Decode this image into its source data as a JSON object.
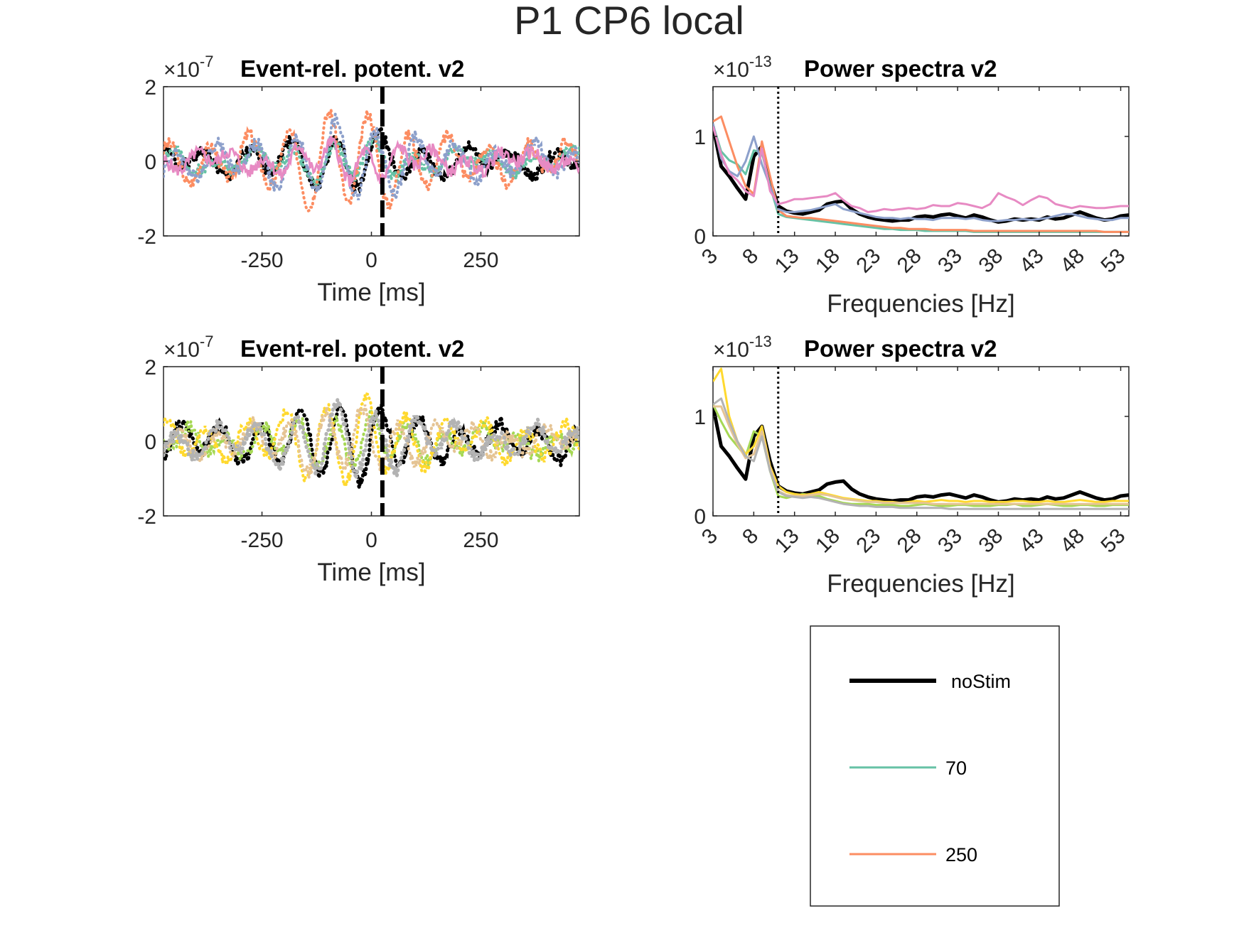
{
  "figure_title": "P1 CP6 local",
  "legend": [
    {
      "label": "noStim",
      "color": "#000000"
    },
    {
      "label": "70",
      "color": "#66c2a5"
    },
    {
      "label": "250",
      "color": "#fc8d62"
    }
  ],
  "chart_data": [
    {
      "type": "line",
      "title": "Event-rel. potent. v2",
      "xlabel": "Time [ms]",
      "ylabel": "",
      "y_multiplier": "×10^-7",
      "xlim": [
        -475,
        475
      ],
      "ylim": [
        -2,
        2
      ],
      "xticks": [
        "-250",
        "0",
        "250"
      ],
      "yticks": [
        "-2",
        "0",
        "2"
      ],
      "event_marker_x": 25,
      "series": [
        {
          "color": "#000000",
          "style": "dotted-thick",
          "amplitude": 0.7,
          "freq": 10,
          "phase": 0.4,
          "seed": 1
        },
        {
          "color": "#66c2a5",
          "style": "dotted",
          "amplitude": 0.5,
          "freq": 11,
          "phase": 1.2,
          "seed": 2
        },
        {
          "color": "#fc8d62",
          "style": "dotted",
          "amplitude": 1.3,
          "freq": 11,
          "phase": 2.0,
          "seed": 3
        },
        {
          "color": "#8da0cb",
          "style": "dotted",
          "amplitude": 1.0,
          "freq": 11,
          "phase": 0.9,
          "seed": 4
        },
        {
          "color": "#e78ac3",
          "style": "solid",
          "amplitude": 0.45,
          "freq": 13,
          "phase": 2.7,
          "seed": 5
        }
      ]
    },
    {
      "type": "line",
      "title": "Power spectra v2",
      "xlabel": "Frequencies [Hz]",
      "ylabel": "",
      "y_multiplier": "×10^-13",
      "xlim": [
        3,
        54
      ],
      "ylim": [
        0,
        1.5
      ],
      "xticks": [
        "3",
        "8",
        "13",
        "18",
        "23",
        "28",
        "33",
        "38",
        "43",
        "48",
        "53"
      ],
      "yticks": [
        "0",
        "1"
      ],
      "marker_x": 11,
      "x": [
        3,
        4,
        5,
        6,
        7,
        8,
        9,
        10,
        11,
        12,
        13,
        14,
        15,
        16,
        17,
        18,
        19,
        20,
        21,
        22,
        23,
        24,
        25,
        26,
        27,
        28,
        29,
        30,
        31,
        32,
        33,
        34,
        35,
        36,
        37,
        38,
        39,
        40,
        41,
        42,
        43,
        44,
        45,
        46,
        47,
        48,
        49,
        50,
        51,
        52,
        53,
        54
      ],
      "series": [
        {
          "color": "#000000",
          "width": 5,
          "values": [
            1.1,
            0.7,
            0.6,
            0.48,
            0.37,
            0.8,
            0.9,
            0.55,
            0.3,
            0.25,
            0.23,
            0.22,
            0.24,
            0.26,
            0.32,
            0.34,
            0.35,
            0.27,
            0.22,
            0.19,
            0.17,
            0.16,
            0.15,
            0.16,
            0.16,
            0.19,
            0.2,
            0.19,
            0.21,
            0.22,
            0.2,
            0.18,
            0.21,
            0.19,
            0.16,
            0.14,
            0.15,
            0.17,
            0.16,
            0.17,
            0.16,
            0.19,
            0.17,
            0.18,
            0.21,
            0.24,
            0.21,
            0.18,
            0.16,
            0.17,
            0.2,
            0.21
          ]
        },
        {
          "color": "#66c2a5",
          "width": 3,
          "values": [
            1.12,
            0.85,
            0.76,
            0.72,
            0.62,
            0.86,
            0.84,
            0.5,
            0.22,
            0.19,
            0.18,
            0.17,
            0.16,
            0.15,
            0.14,
            0.13,
            0.12,
            0.11,
            0.1,
            0.09,
            0.08,
            0.07,
            0.07,
            0.06,
            0.06,
            0.06,
            0.05,
            0.05,
            0.05,
            0.05,
            0.05,
            0.05,
            0.04,
            0.04,
            0.04,
            0.04,
            0.04,
            0.04,
            0.04,
            0.04,
            0.04,
            0.04,
            0.04,
            0.04,
            0.04,
            0.04,
            0.04,
            0.04,
            0.04,
            0.04,
            0.04,
            0.04
          ]
        },
        {
          "color": "#fc8d62",
          "width": 3,
          "values": [
            1.15,
            1.2,
            0.95,
            0.7,
            0.5,
            0.42,
            0.95,
            0.6,
            0.26,
            0.2,
            0.19,
            0.18,
            0.18,
            0.17,
            0.16,
            0.15,
            0.14,
            0.13,
            0.12,
            0.11,
            0.1,
            0.09,
            0.08,
            0.08,
            0.07,
            0.07,
            0.07,
            0.06,
            0.06,
            0.06,
            0.06,
            0.06,
            0.05,
            0.05,
            0.05,
            0.05,
            0.05,
            0.05,
            0.05,
            0.05,
            0.05,
            0.05,
            0.05,
            0.05,
            0.05,
            0.05,
            0.05,
            0.05,
            0.04,
            0.04,
            0.04,
            0.04
          ]
        },
        {
          "color": "#8da0cb",
          "width": 3,
          "values": [
            1.13,
            0.78,
            0.65,
            0.6,
            0.75,
            1.0,
            0.72,
            0.5,
            0.27,
            0.24,
            0.24,
            0.25,
            0.26,
            0.28,
            0.3,
            0.32,
            0.27,
            0.25,
            0.23,
            0.21,
            0.19,
            0.18,
            0.18,
            0.17,
            0.18,
            0.17,
            0.17,
            0.16,
            0.18,
            0.18,
            0.18,
            0.17,
            0.18,
            0.16,
            0.15,
            0.15,
            0.16,
            0.16,
            0.17,
            0.16,
            0.17,
            0.18,
            0.2,
            0.22,
            0.22,
            0.2,
            0.18,
            0.17,
            0.16,
            0.16,
            0.18,
            0.18
          ]
        },
        {
          "color": "#e78ac3",
          "width": 3,
          "values": [
            1.1,
            0.82,
            0.63,
            0.56,
            0.45,
            0.4,
            0.88,
            0.45,
            0.32,
            0.34,
            0.37,
            0.37,
            0.38,
            0.39,
            0.4,
            0.43,
            0.36,
            0.3,
            0.28,
            0.24,
            0.25,
            0.27,
            0.26,
            0.27,
            0.28,
            0.27,
            0.28,
            0.31,
            0.3,
            0.3,
            0.33,
            0.32,
            0.3,
            0.28,
            0.32,
            0.43,
            0.39,
            0.36,
            0.31,
            0.36,
            0.4,
            0.38,
            0.32,
            0.3,
            0.28,
            0.3,
            0.29,
            0.28,
            0.28,
            0.29,
            0.3,
            0.3
          ]
        }
      ]
    },
    {
      "type": "line",
      "title": "Event-rel. potent. v2",
      "xlabel": "Time [ms]",
      "ylabel": "",
      "y_multiplier": "×10^-7",
      "xlim": [
        -475,
        475
      ],
      "ylim": [
        -2,
        2
      ],
      "xticks": [
        "-250",
        "0",
        "250"
      ],
      "yticks": [
        "-2",
        "0",
        "2"
      ],
      "event_marker_x": 25,
      "series": [
        {
          "color": "#000000",
          "style": "dotted-thick",
          "amplitude": 1.0,
          "freq": 11,
          "phase": 0.2,
          "seed": 6
        },
        {
          "color": "#a6d854",
          "style": "dotted",
          "amplitude": 0.7,
          "freq": 12,
          "phase": 1.5,
          "seed": 7
        },
        {
          "color": "#ffd92f",
          "style": "dotted",
          "amplitude": 1.1,
          "freq": 11,
          "phase": 2.4,
          "seed": 8
        },
        {
          "color": "#e5c494",
          "style": "dotted",
          "amplitude": 0.8,
          "freq": 12,
          "phase": 3.1,
          "seed": 9
        },
        {
          "color": "#b3b3b3",
          "style": "dotted-thick",
          "amplitude": 0.9,
          "freq": 11,
          "phase": 0.8,
          "seed": 10
        }
      ]
    },
    {
      "type": "line",
      "title": "Power spectra v2",
      "xlabel": "Frequencies [Hz]",
      "ylabel": "",
      "y_multiplier": "×10^-13",
      "xlim": [
        3,
        54
      ],
      "ylim": [
        0,
        1.5
      ],
      "xticks": [
        "3",
        "8",
        "13",
        "18",
        "23",
        "28",
        "33",
        "38",
        "43",
        "48",
        "53"
      ],
      "yticks": [
        "0",
        "1"
      ],
      "marker_x": 11,
      "x": [
        3,
        4,
        5,
        6,
        7,
        8,
        9,
        10,
        11,
        12,
        13,
        14,
        15,
        16,
        17,
        18,
        19,
        20,
        21,
        22,
        23,
        24,
        25,
        26,
        27,
        28,
        29,
        30,
        31,
        32,
        33,
        34,
        35,
        36,
        37,
        38,
        39,
        40,
        41,
        42,
        43,
        44,
        45,
        46,
        47,
        48,
        49,
        50,
        51,
        52,
        53,
        54
      ],
      "series": [
        {
          "color": "#000000",
          "width": 5,
          "values": [
            1.1,
            0.7,
            0.6,
            0.48,
            0.37,
            0.8,
            0.9,
            0.55,
            0.3,
            0.25,
            0.23,
            0.22,
            0.24,
            0.26,
            0.32,
            0.34,
            0.35,
            0.27,
            0.22,
            0.19,
            0.17,
            0.16,
            0.15,
            0.16,
            0.16,
            0.19,
            0.2,
            0.19,
            0.21,
            0.22,
            0.2,
            0.18,
            0.21,
            0.19,
            0.16,
            0.14,
            0.15,
            0.17,
            0.16,
            0.17,
            0.16,
            0.19,
            0.17,
            0.18,
            0.21,
            0.24,
            0.21,
            0.18,
            0.16,
            0.17,
            0.2,
            0.21
          ]
        },
        {
          "color": "#a6d854",
          "width": 3,
          "values": [
            1.12,
            0.95,
            0.8,
            0.7,
            0.6,
            0.85,
            0.8,
            0.45,
            0.2,
            0.18,
            0.2,
            0.22,
            0.21,
            0.2,
            0.17,
            0.15,
            0.13,
            0.12,
            0.12,
            0.12,
            0.11,
            0.11,
            0.11,
            0.1,
            0.1,
            0.11,
            0.12,
            0.11,
            0.1,
            0.1,
            0.11,
            0.11,
            0.1,
            0.1,
            0.1,
            0.11,
            0.11,
            0.12,
            0.1,
            0.1,
            0.11,
            0.12,
            0.11,
            0.1,
            0.1,
            0.11,
            0.11,
            0.1,
            0.1,
            0.11,
            0.11,
            0.11
          ]
        },
        {
          "color": "#ffd92f",
          "width": 3,
          "values": [
            1.35,
            1.48,
            1.0,
            0.75,
            0.62,
            0.7,
            0.9,
            0.5,
            0.3,
            0.24,
            0.22,
            0.21,
            0.22,
            0.24,
            0.22,
            0.2,
            0.18,
            0.17,
            0.16,
            0.15,
            0.15,
            0.14,
            0.14,
            0.13,
            0.14,
            0.15,
            0.14,
            0.15,
            0.16,
            0.15,
            0.15,
            0.14,
            0.15,
            0.15,
            0.14,
            0.14,
            0.14,
            0.15,
            0.15,
            0.14,
            0.14,
            0.15,
            0.14,
            0.14,
            0.15,
            0.16,
            0.15,
            0.14,
            0.14,
            0.15,
            0.15,
            0.15
          ]
        },
        {
          "color": "#e5c494",
          "width": 3,
          "values": [
            1.1,
            1.1,
            0.9,
            0.72,
            0.58,
            0.62,
            0.85,
            0.48,
            0.25,
            0.21,
            0.2,
            0.2,
            0.21,
            0.22,
            0.21,
            0.19,
            0.17,
            0.16,
            0.15,
            0.14,
            0.14,
            0.13,
            0.13,
            0.13,
            0.13,
            0.13,
            0.13,
            0.12,
            0.12,
            0.12,
            0.12,
            0.12,
            0.12,
            0.12,
            0.12,
            0.12,
            0.12,
            0.12,
            0.12,
            0.12,
            0.12,
            0.12,
            0.12,
            0.12,
            0.12,
            0.12,
            0.12,
            0.12,
            0.12,
            0.12,
            0.12,
            0.12
          ]
        },
        {
          "color": "#b3b3b3",
          "width": 3,
          "values": [
            1.12,
            1.18,
            0.95,
            0.75,
            0.6,
            0.55,
            0.8,
            0.45,
            0.24,
            0.2,
            0.19,
            0.18,
            0.19,
            0.18,
            0.16,
            0.14,
            0.12,
            0.11,
            0.1,
            0.1,
            0.09,
            0.09,
            0.09,
            0.08,
            0.08,
            0.08,
            0.08,
            0.08,
            0.08,
            0.07,
            0.07,
            0.07,
            0.07,
            0.07,
            0.07,
            0.07,
            0.07,
            0.07,
            0.07,
            0.07,
            0.07,
            0.07,
            0.07,
            0.07,
            0.07,
            0.07,
            0.07,
            0.07,
            0.07,
            0.07,
            0.07,
            0.07
          ]
        }
      ]
    }
  ]
}
